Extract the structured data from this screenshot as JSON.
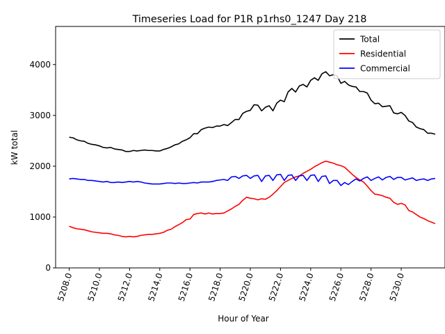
{
  "chart_data": {
    "type": "line",
    "title": "Timeseries Load for P1R p1rhs0_1247  Day 218",
    "xlabel": "Hour of Year",
    "ylabel": "kW total",
    "xlim": [
      5207.1,
      5232.9
    ],
    "ylim": [
      0,
      4750
    ],
    "xticks": [
      5208,
      5210,
      5212,
      5214,
      5216,
      5218,
      5220,
      5222,
      5224,
      5226,
      5228,
      5230
    ],
    "xtick_labels": [
      "5208.0",
      "5210.0",
      "5212.0",
      "5214.0",
      "5216.0",
      "5218.0",
      "5220.0",
      "5222.0",
      "5224.0",
      "5226.0",
      "5228.0",
      "5230.0"
    ],
    "yticks": [
      0,
      1000,
      2000,
      3000,
      4000
    ],
    "ytick_labels": [
      "0",
      "1000",
      "2000",
      "3000",
      "4000"
    ],
    "legend_position": "top-right",
    "x_start": 5208,
    "x_step": 0.25,
    "series": [
      {
        "name": "Total",
        "color": "#000000",
        "values": [
          2570,
          2560,
          2520,
          2500,
          2490,
          2450,
          2430,
          2420,
          2400,
          2370,
          2360,
          2370,
          2340,
          2330,
          2320,
          2290,
          2290,
          2310,
          2300,
          2310,
          2320,
          2310,
          2310,
          2300,
          2300,
          2330,
          2350,
          2380,
          2420,
          2440,
          2490,
          2520,
          2560,
          2640,
          2640,
          2720,
          2750,
          2770,
          2760,
          2790,
          2790,
          2820,
          2800,
          2860,
          2920,
          2920,
          3040,
          3080,
          3100,
          3210,
          3200,
          3090,
          3160,
          3190,
          3090,
          3240,
          3300,
          3270,
          3460,
          3530,
          3460,
          3580,
          3610,
          3560,
          3690,
          3740,
          3690,
          3820,
          3860,
          3780,
          3800,
          3780,
          3630,
          3670,
          3600,
          3570,
          3560,
          3470,
          3470,
          3440,
          3300,
          3230,
          3240,
          3170,
          3180,
          3190,
          3050,
          3030,
          3060,
          3000,
          2890,
          2860,
          2770,
          2740,
          2720,
          2650,
          2650,
          2630
        ]
      },
      {
        "name": "Residential",
        "color": "#ff0000",
        "values": [
          820,
          790,
          770,
          760,
          750,
          730,
          710,
          700,
          690,
          680,
          680,
          670,
          650,
          640,
          620,
          610,
          620,
          610,
          620,
          640,
          650,
          660,
          660,
          670,
          680,
          700,
          740,
          760,
          810,
          850,
          890,
          950,
          960,
          1050,
          1070,
          1080,
          1060,
          1080,
          1060,
          1070,
          1070,
          1080,
          1120,
          1160,
          1210,
          1250,
          1330,
          1390,
          1370,
          1360,
          1340,
          1360,
          1350,
          1390,
          1450,
          1520,
          1600,
          1680,
          1720,
          1760,
          1790,
          1810,
          1860,
          1900,
          1940,
          1990,
          2030,
          2070,
          2100,
          2080,
          2060,
          2030,
          2010,
          1980,
          1910,
          1840,
          1780,
          1730,
          1690,
          1610,
          1520,
          1450,
          1440,
          1420,
          1390,
          1370,
          1290,
          1250,
          1270,
          1240,
          1130,
          1100,
          1050,
          1000,
          970,
          930,
          900,
          870
        ]
      },
      {
        "name": "Commercial",
        "color": "#0000ff",
        "values": [
          1750,
          1760,
          1750,
          1740,
          1740,
          1720,
          1720,
          1710,
          1700,
          1690,
          1700,
          1680,
          1680,
          1690,
          1680,
          1690,
          1700,
          1690,
          1700,
          1690,
          1670,
          1660,
          1650,
          1650,
          1650,
          1660,
          1670,
          1670,
          1660,
          1670,
          1660,
          1660,
          1670,
          1680,
          1670,
          1690,
          1690,
          1690,
          1700,
          1720,
          1730,
          1740,
          1720,
          1790,
          1800,
          1760,
          1810,
          1820,
          1760,
          1810,
          1820,
          1700,
          1810,
          1820,
          1720,
          1830,
          1840,
          1720,
          1820,
          1830,
          1720,
          1810,
          1820,
          1720,
          1820,
          1830,
          1700,
          1800,
          1810,
          1660,
          1720,
          1720,
          1620,
          1680,
          1640,
          1700,
          1750,
          1710,
          1760,
          1790,
          1720,
          1760,
          1790,
          1730,
          1780,
          1800,
          1740,
          1780,
          1780,
          1730,
          1750,
          1770,
          1720,
          1740,
          1750,
          1720,
          1750,
          1760
        ]
      }
    ]
  }
}
